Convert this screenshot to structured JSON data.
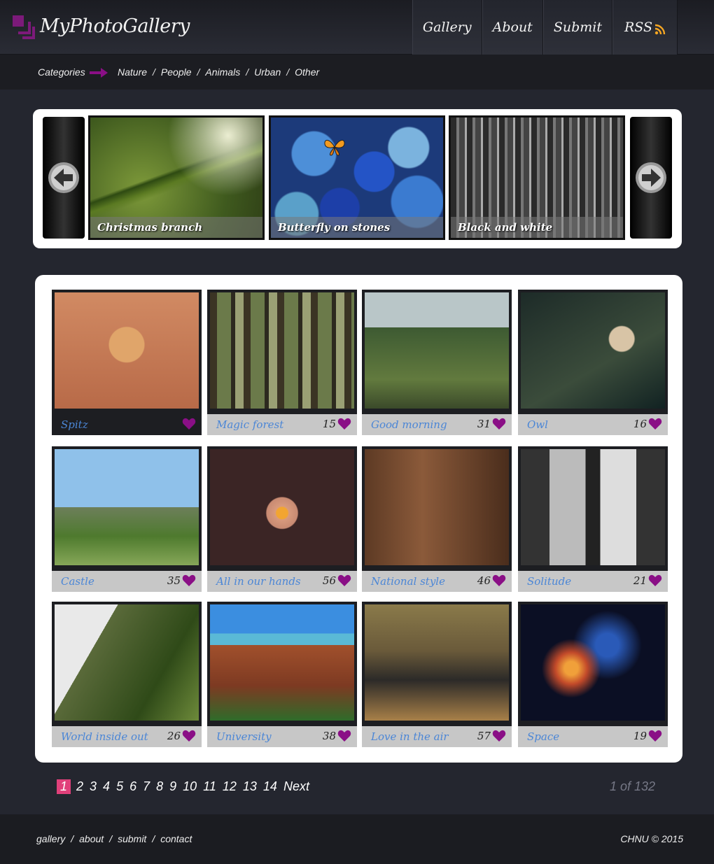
{
  "header": {
    "logo_text": "MyPhotoGallery",
    "nav": [
      "Gallery",
      "About",
      "Submit",
      "RSS"
    ]
  },
  "categories": {
    "label": "Categories",
    "items": [
      "Nature",
      "People",
      "Animals",
      "Urban",
      "Other"
    ],
    "separator": "/"
  },
  "slider": {
    "slides": [
      {
        "caption": "Christmas branch"
      },
      {
        "caption": "Butterfly on stones"
      },
      {
        "caption": "Black and white"
      }
    ]
  },
  "gallery": {
    "photos": [
      {
        "title": "Spitz",
        "likes": ""
      },
      {
        "title": "Magic forest",
        "likes": "15"
      },
      {
        "title": "Good morning",
        "likes": "31"
      },
      {
        "title": "Owl",
        "likes": "16"
      },
      {
        "title": "Castle",
        "likes": "35"
      },
      {
        "title": "All in our hands",
        "likes": "56"
      },
      {
        "title": "National style",
        "likes": "46"
      },
      {
        "title": "Solitude",
        "likes": "21"
      },
      {
        "title": "World inside out",
        "likes": "26"
      },
      {
        "title": "University",
        "likes": "38"
      },
      {
        "title": "Love in the air",
        "likes": "57"
      },
      {
        "title": "Space",
        "likes": "19"
      }
    ]
  },
  "pagination": {
    "pages": [
      "1",
      "2",
      "3",
      "4",
      "5",
      "6",
      "7",
      "8",
      "9",
      "10",
      "11",
      "12",
      "13",
      "14"
    ],
    "next": "Next",
    "info": "1 of 132"
  },
  "footer": {
    "links": [
      "gallery",
      "about",
      "submit",
      "contact"
    ],
    "separator": "/",
    "copyright": "CHNU © 2015"
  },
  "colors": {
    "accent": "#7c1a7a",
    "heart": "#8a0f86",
    "title_link": "#4b86d6",
    "active_page": "#e0407a"
  }
}
